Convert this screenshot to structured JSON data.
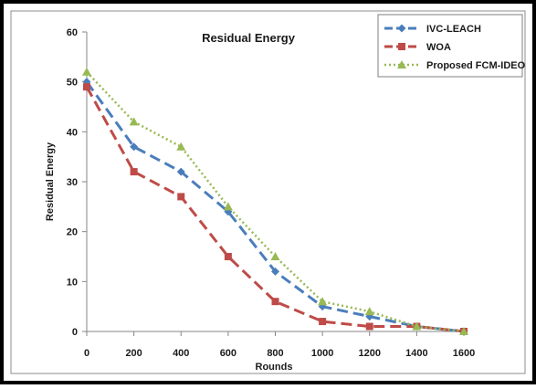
{
  "chart_data": {
    "type": "line",
    "title": "Residual Energy",
    "xlabel": "Rounds",
    "ylabel": "Residual Energy",
    "xlim": [
      0,
      1600
    ],
    "ylim": [
      0,
      60
    ],
    "x_ticks": [
      "0",
      "200",
      "400",
      "600",
      "800",
      "1000",
      "1200",
      "1400",
      "1600"
    ],
    "y_ticks": [
      "0",
      "10",
      "20",
      "30",
      "40",
      "50",
      "60"
    ],
    "x": [
      0,
      200,
      400,
      600,
      800,
      1000,
      1200,
      1400,
      1600
    ],
    "grid": false,
    "legend_position": "top-right",
    "series": [
      {
        "name": "IVC-LEACH",
        "color": "#4a7ebb",
        "marker": "diamond",
        "line": "dash",
        "values": [
          50,
          37,
          32,
          24,
          12,
          5,
          3,
          1,
          0
        ]
      },
      {
        "name": "WOA",
        "color": "#be4b48",
        "marker": "square",
        "line": "dash",
        "values": [
          49,
          32,
          27,
          15,
          6,
          2,
          1,
          1,
          0
        ]
      },
      {
        "name": "Proposed FCM-IDEO",
        "color": "#98b954",
        "marker": "triangle",
        "line": "dot",
        "values": [
          52,
          42,
          37,
          25,
          15,
          6,
          4,
          1,
          0
        ]
      }
    ]
  }
}
